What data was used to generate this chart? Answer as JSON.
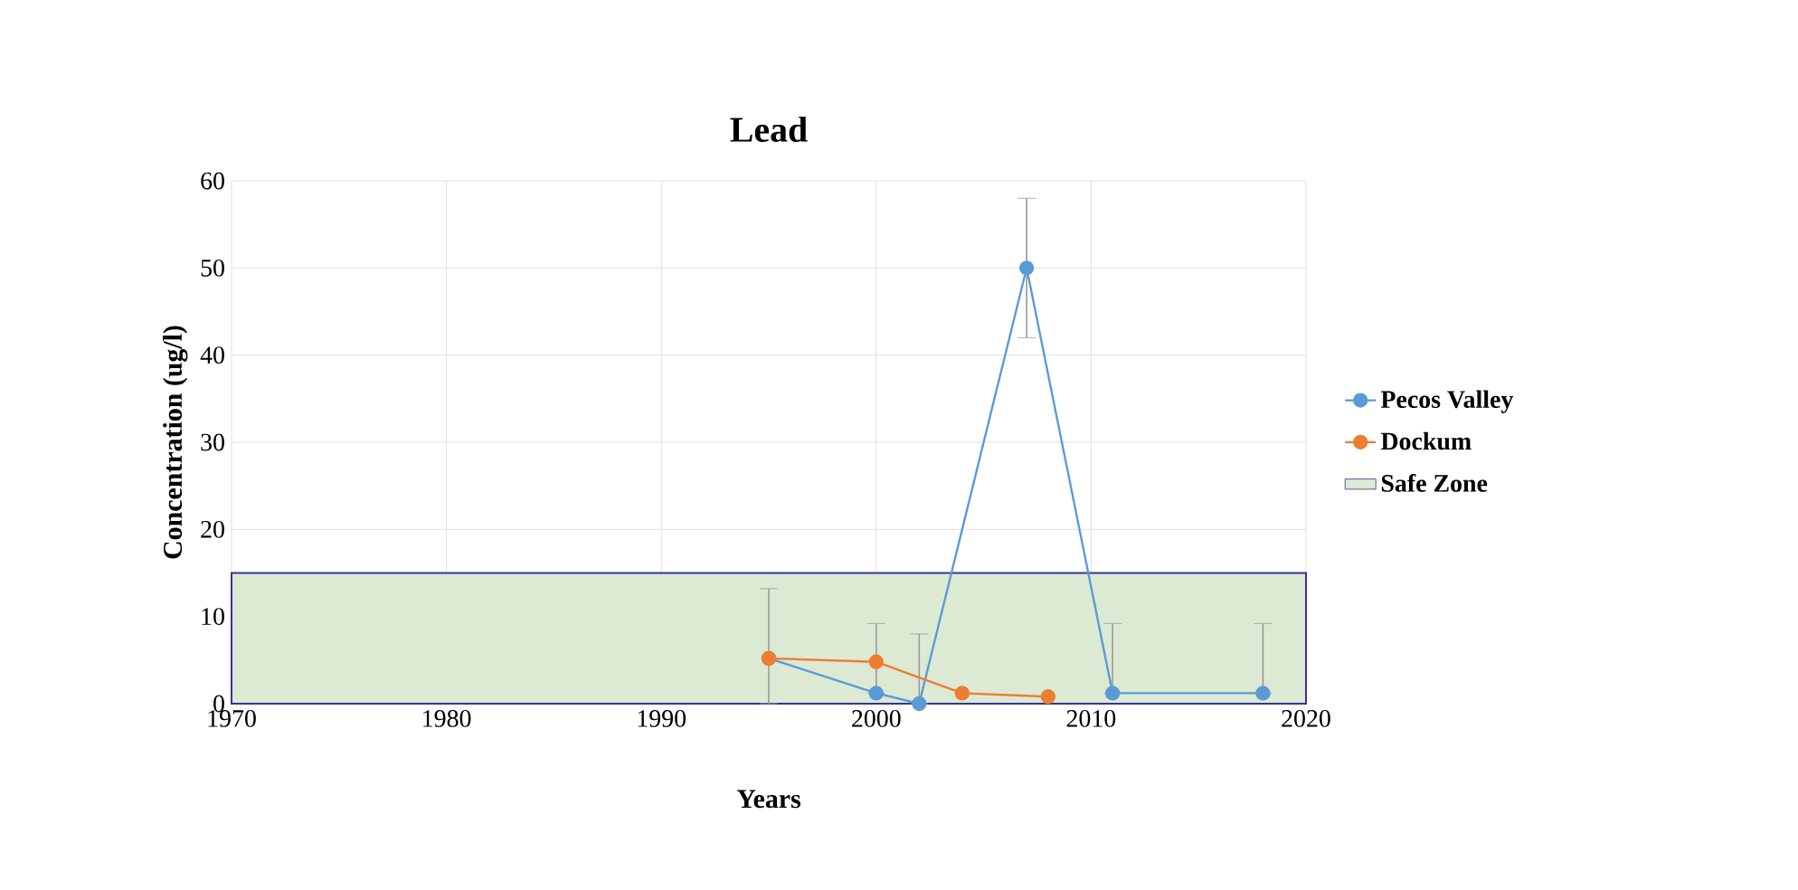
{
  "chart_data": {
    "type": "line",
    "title": "Lead",
    "xlabel": "Years",
    "ylabel": "Concentration (ug/l)",
    "xlim": [
      1970,
      2020
    ],
    "xticks": [
      1970,
      1980,
      1990,
      2000,
      2010,
      2020
    ],
    "ylim": [
      0,
      60
    ],
    "yticks": [
      0,
      10,
      20,
      30,
      40,
      50,
      60
    ],
    "grid": true,
    "legend": "right",
    "marker": "circle",
    "series": [
      {
        "name": "Pecos Valley",
        "color": "#5b9bd5",
        "x": [
          1995,
          2000,
          2002,
          2007,
          2011,
          2018
        ],
        "values": [
          5.2,
          1.2,
          0,
          50,
          1.2,
          1.2
        ],
        "errors": [
          [
            0,
            13.2
          ],
          [
            1.2,
            9.2
          ],
          [
            0,
            8
          ],
          8,
          [
            1.2,
            9.2
          ],
          [
            1.2,
            9.2
          ]
        ]
      },
      {
        "name": "Dockum",
        "color": "#ed7d31",
        "x": [
          1995,
          2000,
          2004,
          2008
        ],
        "values": [
          5.2,
          4.8,
          1.2,
          0.8
        ]
      }
    ],
    "bands": [
      {
        "axis": "y",
        "from": 0,
        "to": 15,
        "label": "Safe Zone",
        "color": "#dce9d3"
      }
    ]
  }
}
